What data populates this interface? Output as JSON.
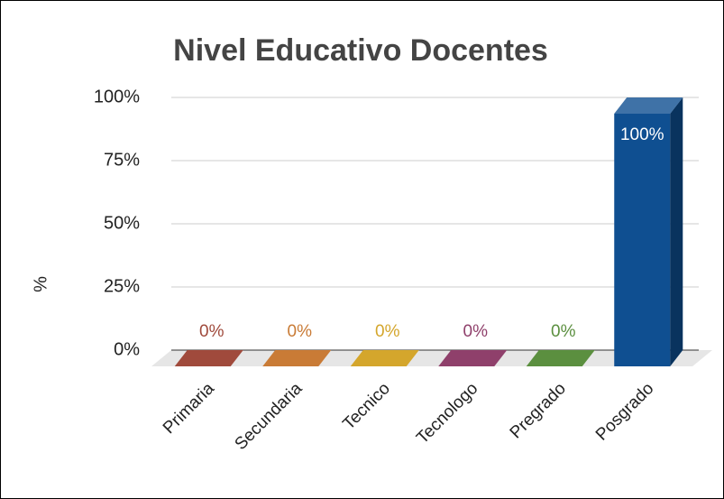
{
  "chart_data": {
    "type": "bar3d",
    "title": "Nivel Educativo Docentes",
    "y_label": "%",
    "categories": [
      "Primaria",
      "Secundaria",
      "Tecnico",
      "Tecnologo",
      "Pregrado",
      "Posgrado"
    ],
    "values": [
      0,
      0,
      0,
      0,
      0,
      100
    ],
    "value_labels": [
      "0%",
      "0%",
      "0%",
      "0%",
      "0%",
      "100%"
    ],
    "colors": [
      "#a04a3c",
      "#c97b36",
      "#d4a62c",
      "#8f406b",
      "#5b8f3f",
      "#0f4f91"
    ],
    "ylim": [
      0,
      100
    ],
    "yticks": [
      {
        "value": 0,
        "label": "0%"
      },
      {
        "value": 25,
        "label": "25%"
      },
      {
        "value": 50,
        "label": "50%"
      },
      {
        "value": 75,
        "label": "75%"
      },
      {
        "value": 100,
        "label": "100%"
      }
    ],
    "grid": true
  }
}
